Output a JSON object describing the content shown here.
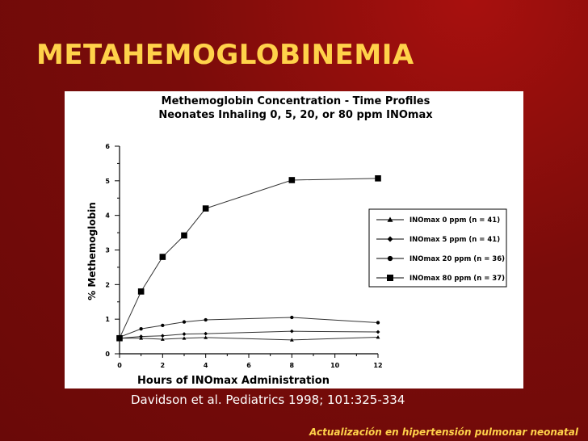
{
  "slide": {
    "title": "METAHEMOGLOBINEMIA",
    "citation": "Davidson et al. Pediatrics 1998; 101:325-334",
    "footer": "Actualización en hipertensión pulmonar neonatal"
  },
  "colors": {
    "background": "#7a0c0a",
    "title": "#ffd24a",
    "footer": "#ffd24a",
    "citation": "#ffffff"
  },
  "chart_data": {
    "type": "line",
    "title": "Methemoglobin Concentration - Time Profiles",
    "subtitle": "Neonates Inhaling 0, 5, 20, or 80 ppm INOmax",
    "xlabel": "Hours of INOmax Administration",
    "ylabel": "% Methemoglobin",
    "xlim": [
      0,
      12
    ],
    "ylim": [
      0,
      6
    ],
    "xticks": [
      0,
      2,
      4,
      6,
      8,
      10,
      12
    ],
    "yticks": [
      0,
      1,
      2,
      3,
      4,
      5,
      6
    ],
    "legend_position": "right",
    "grid": false,
    "series": [
      {
        "name": "INOmax 0 ppm (n = 41)",
        "marker": "triangle",
        "x": [
          0,
          1,
          2,
          3,
          4,
          8,
          12
        ],
        "y": [
          0.45,
          0.45,
          0.42,
          0.45,
          0.47,
          0.4,
          0.48
        ]
      },
      {
        "name": "INOmax 5 ppm (n = 41)",
        "marker": "diamond",
        "x": [
          0,
          1,
          2,
          3,
          4,
          8,
          12
        ],
        "y": [
          0.45,
          0.5,
          0.52,
          0.57,
          0.58,
          0.65,
          0.63
        ]
      },
      {
        "name": "INOmax 20 ppm (n = 36)",
        "marker": "circle",
        "x": [
          0,
          1,
          2,
          3,
          4,
          8,
          12
        ],
        "y": [
          0.48,
          0.72,
          0.82,
          0.92,
          0.98,
          1.05,
          0.9
        ]
      },
      {
        "name": "INOmax 80 ppm (n = 37)",
        "marker": "square",
        "x": [
          0,
          1,
          2,
          3,
          4,
          8,
          12
        ],
        "y": [
          0.45,
          1.8,
          2.8,
          3.42,
          4.2,
          5.02,
          5.07
        ]
      }
    ]
  }
}
